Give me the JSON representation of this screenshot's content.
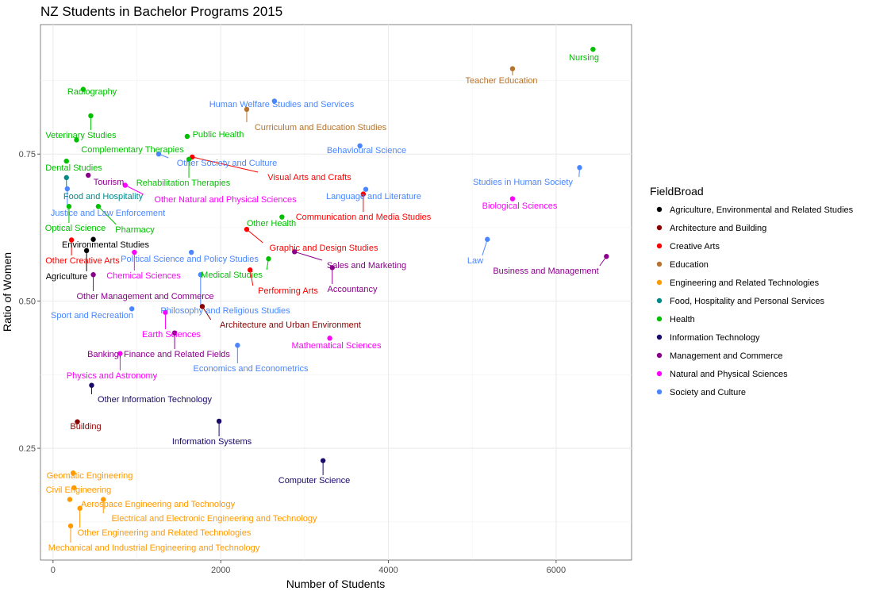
{
  "chart_data": {
    "type": "scatter",
    "title": "NZ Students in Bachelor Programs 2015",
    "xlabel": "Number of Students",
    "ylabel": "Ratio of Women",
    "xlim": [
      -150,
      6900
    ],
    "ylim": [
      0.06,
      0.97
    ],
    "x_ticks": [
      0,
      2000,
      4000,
      6000
    ],
    "x_tick_labels": [
      "0",
      "2000",
      "4000",
      "6000"
    ],
    "y_ticks": [
      0.25,
      0.5,
      0.75
    ],
    "y_tick_labels": [
      "0.25",
      "0.50",
      "0.75"
    ],
    "grid": true,
    "legend_position": "right",
    "legend_title": "FieldBroad",
    "categories": [
      {
        "name": "Agriculture, Environmental and Related Studies",
        "color": "#000000"
      },
      {
        "name": "Architecture and Building",
        "color": "#8b0000"
      },
      {
        "name": "Creative Arts",
        "color": "#ff0000"
      },
      {
        "name": "Education",
        "color": "#b5732e"
      },
      {
        "name": "Engineering and Related Technologies",
        "color": "#ff9900"
      },
      {
        "name": "Food, Hospitality and Personal Services",
        "color": "#008b8b"
      },
      {
        "name": "Health",
        "color": "#00c000"
      },
      {
        "name": "Information Technology",
        "color": "#1a0a6b"
      },
      {
        "name": "Management and Commerce",
        "color": "#8b008b"
      },
      {
        "name": "Natural and Physical Sciences",
        "color": "#ff00ff"
      },
      {
        "name": "Society and Culture",
        "color": "#4a86ff"
      }
    ],
    "points": [
      {
        "label": "Nursing",
        "category": 6,
        "x": 6440,
        "y": 0.928
      },
      {
        "label": "Teacher Education",
        "category": 3,
        "x": 5480,
        "y": 0.895
      },
      {
        "label": "Radiography",
        "category": 6,
        "x": 360,
        "y": 0.86
      },
      {
        "label": "Human Welfare Studies and Services",
        "category": 10,
        "x": 2640,
        "y": 0.84
      },
      {
        "label": "Curriculum and Education Studies",
        "category": 3,
        "x": 2310,
        "y": 0.826
      },
      {
        "label": "Veterinary Studies",
        "category": 6,
        "x": 450,
        "y": 0.815
      },
      {
        "label": "Public Health",
        "category": 6,
        "x": 1600,
        "y": 0.78
      },
      {
        "label": "Complementary Therapies",
        "category": 6,
        "x": 280,
        "y": 0.774
      },
      {
        "label": "Behavioural Science",
        "category": 10,
        "x": 3660,
        "y": 0.764
      },
      {
        "label": "Other Society and Culture",
        "category": 10,
        "x": 1260,
        "y": 0.75
      },
      {
        "label": "Visual Arts and Crafts",
        "category": 2,
        "x": 1660,
        "y": 0.745
      },
      {
        "label": "Rehabilitation Therapies",
        "category": 6,
        "x": 1620,
        "y": 0.741
      },
      {
        "label": "Dental Studies",
        "category": 6,
        "x": 160,
        "y": 0.738
      },
      {
        "label": "Studies in Human Society",
        "category": 10,
        "x": 6280,
        "y": 0.727
      },
      {
        "label": "Tourism",
        "category": 8,
        "x": 420,
        "y": 0.714
      },
      {
        "label": "Food and Hospitality",
        "category": 5,
        "x": 160,
        "y": 0.71
      },
      {
        "label": "Other Natural and Physical Sciences",
        "category": 9,
        "x": 860,
        "y": 0.697
      },
      {
        "label": "Justice and Law Enforcement",
        "category": 10,
        "x": 170,
        "y": 0.691
      },
      {
        "label": "Language and Literature",
        "category": 10,
        "x": 3730,
        "y": 0.69
      },
      {
        "label": "Biological Sciences",
        "category": 9,
        "x": 5480,
        "y": 0.674
      },
      {
        "label": "Communication and Media Studies",
        "category": 2,
        "x": 3700,
        "y": 0.682
      },
      {
        "label": "Optical Science",
        "category": 6,
        "x": 190,
        "y": 0.661
      },
      {
        "label": "Pharmacy",
        "category": 6,
        "x": 540,
        "y": 0.661
      },
      {
        "label": "Other Health",
        "category": 6,
        "x": 2730,
        "y": 0.643
      },
      {
        "label": "Graphic and Design Studies",
        "category": 2,
        "x": 2310,
        "y": 0.622
      },
      {
        "label": "Environmental Studies",
        "category": 0,
        "x": 480,
        "y": 0.605
      },
      {
        "label": "Law",
        "category": 10,
        "x": 5180,
        "y": 0.605
      },
      {
        "label": "Other Creative Arts",
        "category": 2,
        "x": 220,
        "y": 0.604
      },
      {
        "label": "Agriculture",
        "category": 0,
        "x": 400,
        "y": 0.586
      },
      {
        "label": "Political Science and Policy Studies",
        "category": 10,
        "x": 1650,
        "y": 0.583
      },
      {
        "label": "Chemical Sciences",
        "category": 9,
        "x": 970,
        "y": 0.583
      },
      {
        "label": "Sales and Marketing",
        "category": 8,
        "x": 2880,
        "y": 0.584
      },
      {
        "label": "Business and Management",
        "category": 8,
        "x": 6600,
        "y": 0.576
      },
      {
        "label": "Medical Studies",
        "category": 6,
        "x": 2570,
        "y": 0.572
      },
      {
        "label": "Accountancy",
        "category": 8,
        "x": 3330,
        "y": 0.557
      },
      {
        "label": "Performing Arts",
        "category": 2,
        "x": 2350,
        "y": 0.553
      },
      {
        "label": "Other Management and Commerce",
        "category": 8,
        "x": 480,
        "y": 0.545
      },
      {
        "label": "Philosophy and Religious Studies",
        "category": 10,
        "x": 1760,
        "y": 0.545
      },
      {
        "label": "Architecture and Urban Environment",
        "category": 1,
        "x": 1780,
        "y": 0.491
      },
      {
        "label": "Sport and Recreation",
        "category": 10,
        "x": 940,
        "y": 0.487
      },
      {
        "label": "Earth Sciences",
        "category": 9,
        "x": 1340,
        "y": 0.481
      },
      {
        "label": "Banking, Finance and Related Fields",
        "category": 8,
        "x": 1450,
        "y": 0.446
      },
      {
        "label": "Mathematical Sciences",
        "category": 9,
        "x": 3300,
        "y": 0.437
      },
      {
        "label": "Economics and Econometrics",
        "category": 10,
        "x": 2200,
        "y": 0.425
      },
      {
        "label": "Physics and Astronomy",
        "category": 9,
        "x": 800,
        "y": 0.411
      },
      {
        "label": "Other Information Technology",
        "category": 7,
        "x": 460,
        "y": 0.357
      },
      {
        "label": "Information Systems",
        "category": 7,
        "x": 1980,
        "y": 0.296
      },
      {
        "label": "Building",
        "category": 1,
        "x": 290,
        "y": 0.295
      },
      {
        "label": "Computer Science",
        "category": 7,
        "x": 3220,
        "y": 0.229
      },
      {
        "label": "Geomatic Engineering",
        "category": 4,
        "x": 240,
        "y": 0.208
      },
      {
        "label": "Civil Engineering",
        "category": 4,
        "x": 250,
        "y": 0.183
      },
      {
        "label": "Aerospace Engineering and Technology",
        "category": 4,
        "x": 200,
        "y": 0.163
      },
      {
        "label": "Electrical and Electronic Engineering and Technology",
        "category": 4,
        "x": 600,
        "y": 0.163
      },
      {
        "label": "Other Engineering and Related Technologies",
        "category": 4,
        "x": 320,
        "y": 0.148
      },
      {
        "label": "Mechanical and Industrial Engineering and Technology",
        "category": 4,
        "x": 210,
        "y": 0.118
      }
    ]
  }
}
